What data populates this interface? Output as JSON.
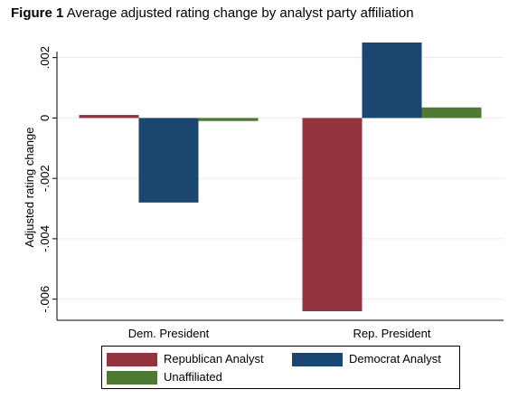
{
  "figure": {
    "label": "Figure 1",
    "title": "Average adjusted rating change by analyst party affiliation"
  },
  "chart_data": {
    "type": "bar",
    "categories": [
      "Dem. President",
      "Rep. President"
    ],
    "series": [
      {
        "name": "Republican Analyst",
        "color": "#93343f",
        "values": [
          0.0001,
          -0.0064
        ]
      },
      {
        "name": "Democrat Analyst",
        "color": "#1a466f",
        "values": [
          -0.0028,
          0.0025
        ]
      },
      {
        "name": "Unaffiliated",
        "color": "#4e7a34",
        "values": [
          -0.0001,
          0.00035
        ]
      }
    ],
    "ylabel": "Adjusted rating change",
    "xlabel": "",
    "ylim": [
      -0.0067,
      0.0022
    ],
    "yticks": [
      0.002,
      0,
      -0.002,
      -0.004,
      -0.006
    ],
    "ytick_labels": [
      ".002",
      "0",
      "-.002",
      "-.004",
      "-.006"
    ],
    "grid": true,
    "legend_placement": "bottom"
  }
}
